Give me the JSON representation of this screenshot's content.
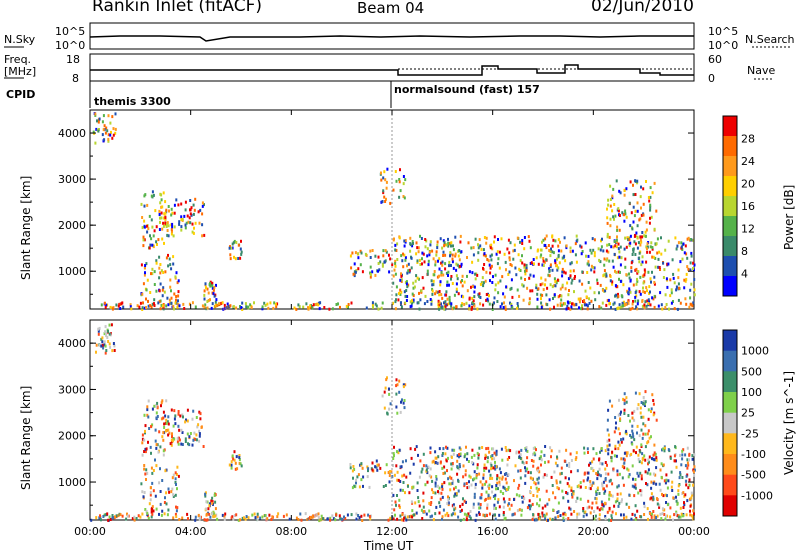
{
  "header": {
    "station": "Rankin Inlet (fitACF)",
    "beam": "Beam 04",
    "date": "02/Jun/2010"
  },
  "status_panels": {
    "nsky_label": "N.Sky",
    "nsky_ticks": [
      "10^5",
      "10^0"
    ],
    "nsearch_label": "N.Search",
    "nsearch_ticks": [
      "10^5",
      "10^0"
    ],
    "freq_label": "Freq.",
    "freq_unit": "[MHz]",
    "freq_ticks": [
      "18",
      "8"
    ],
    "nave_label": "Nave",
    "nave_ticks": [
      "60",
      "0"
    ],
    "cpid_label": "CPID",
    "cpid_modes": [
      {
        "name": "themis 3300",
        "start_hour": 0
      },
      {
        "name": "normalsound (fast) 157",
        "start_hour": 12
      }
    ]
  },
  "x_axis": {
    "label": "Time UT",
    "ticks": [
      "00:00",
      "04:00",
      "08:00",
      "12:00",
      "16:00",
      "20:00",
      "00:00"
    ]
  },
  "chart_data": [
    {
      "type": "heatmap",
      "title": "",
      "xlabel": "Time UT",
      "ylabel": "Slant Range [km]",
      "x_range_hours": [
        0,
        24
      ],
      "ylim": [
        180,
        4500
      ],
      "yticks": [
        "1000",
        "2000",
        "3000",
        "4000"
      ],
      "colorbar": {
        "label": "Power [dB]",
        "ticks": [
          "28",
          "24",
          "20",
          "16",
          "12",
          "8",
          "4"
        ],
        "colors": [
          "#ee0000",
          "#ff6a00",
          "#ff9a1c",
          "#ffcf00",
          "#b8d630",
          "#55b24a",
          "#3a8a6a",
          "#1e4fb0",
          "#0000ff"
        ]
      }
    },
    {
      "type": "heatmap",
      "title": "",
      "xlabel": "Time UT",
      "ylabel": "Slant Range [km]",
      "x_range_hours": [
        0,
        24
      ],
      "ylim": [
        180,
        4500
      ],
      "yticks": [
        "1000",
        "2000",
        "3000",
        "4000"
      ],
      "colorbar": {
        "label": "Velocity [m s^-1]",
        "ticks": [
          "1000",
          "500",
          "100",
          "25",
          "-25",
          "-100",
          "-500",
          "-1000"
        ],
        "colors": [
          "#1a3aa8",
          "#3a6fb0",
          "#3c8f6a",
          "#7fd04a",
          "#c8c8c8",
          "#ffb81c",
          "#ff8c1a",
          "#ff4a1a",
          "#e00000"
        ]
      }
    }
  ]
}
